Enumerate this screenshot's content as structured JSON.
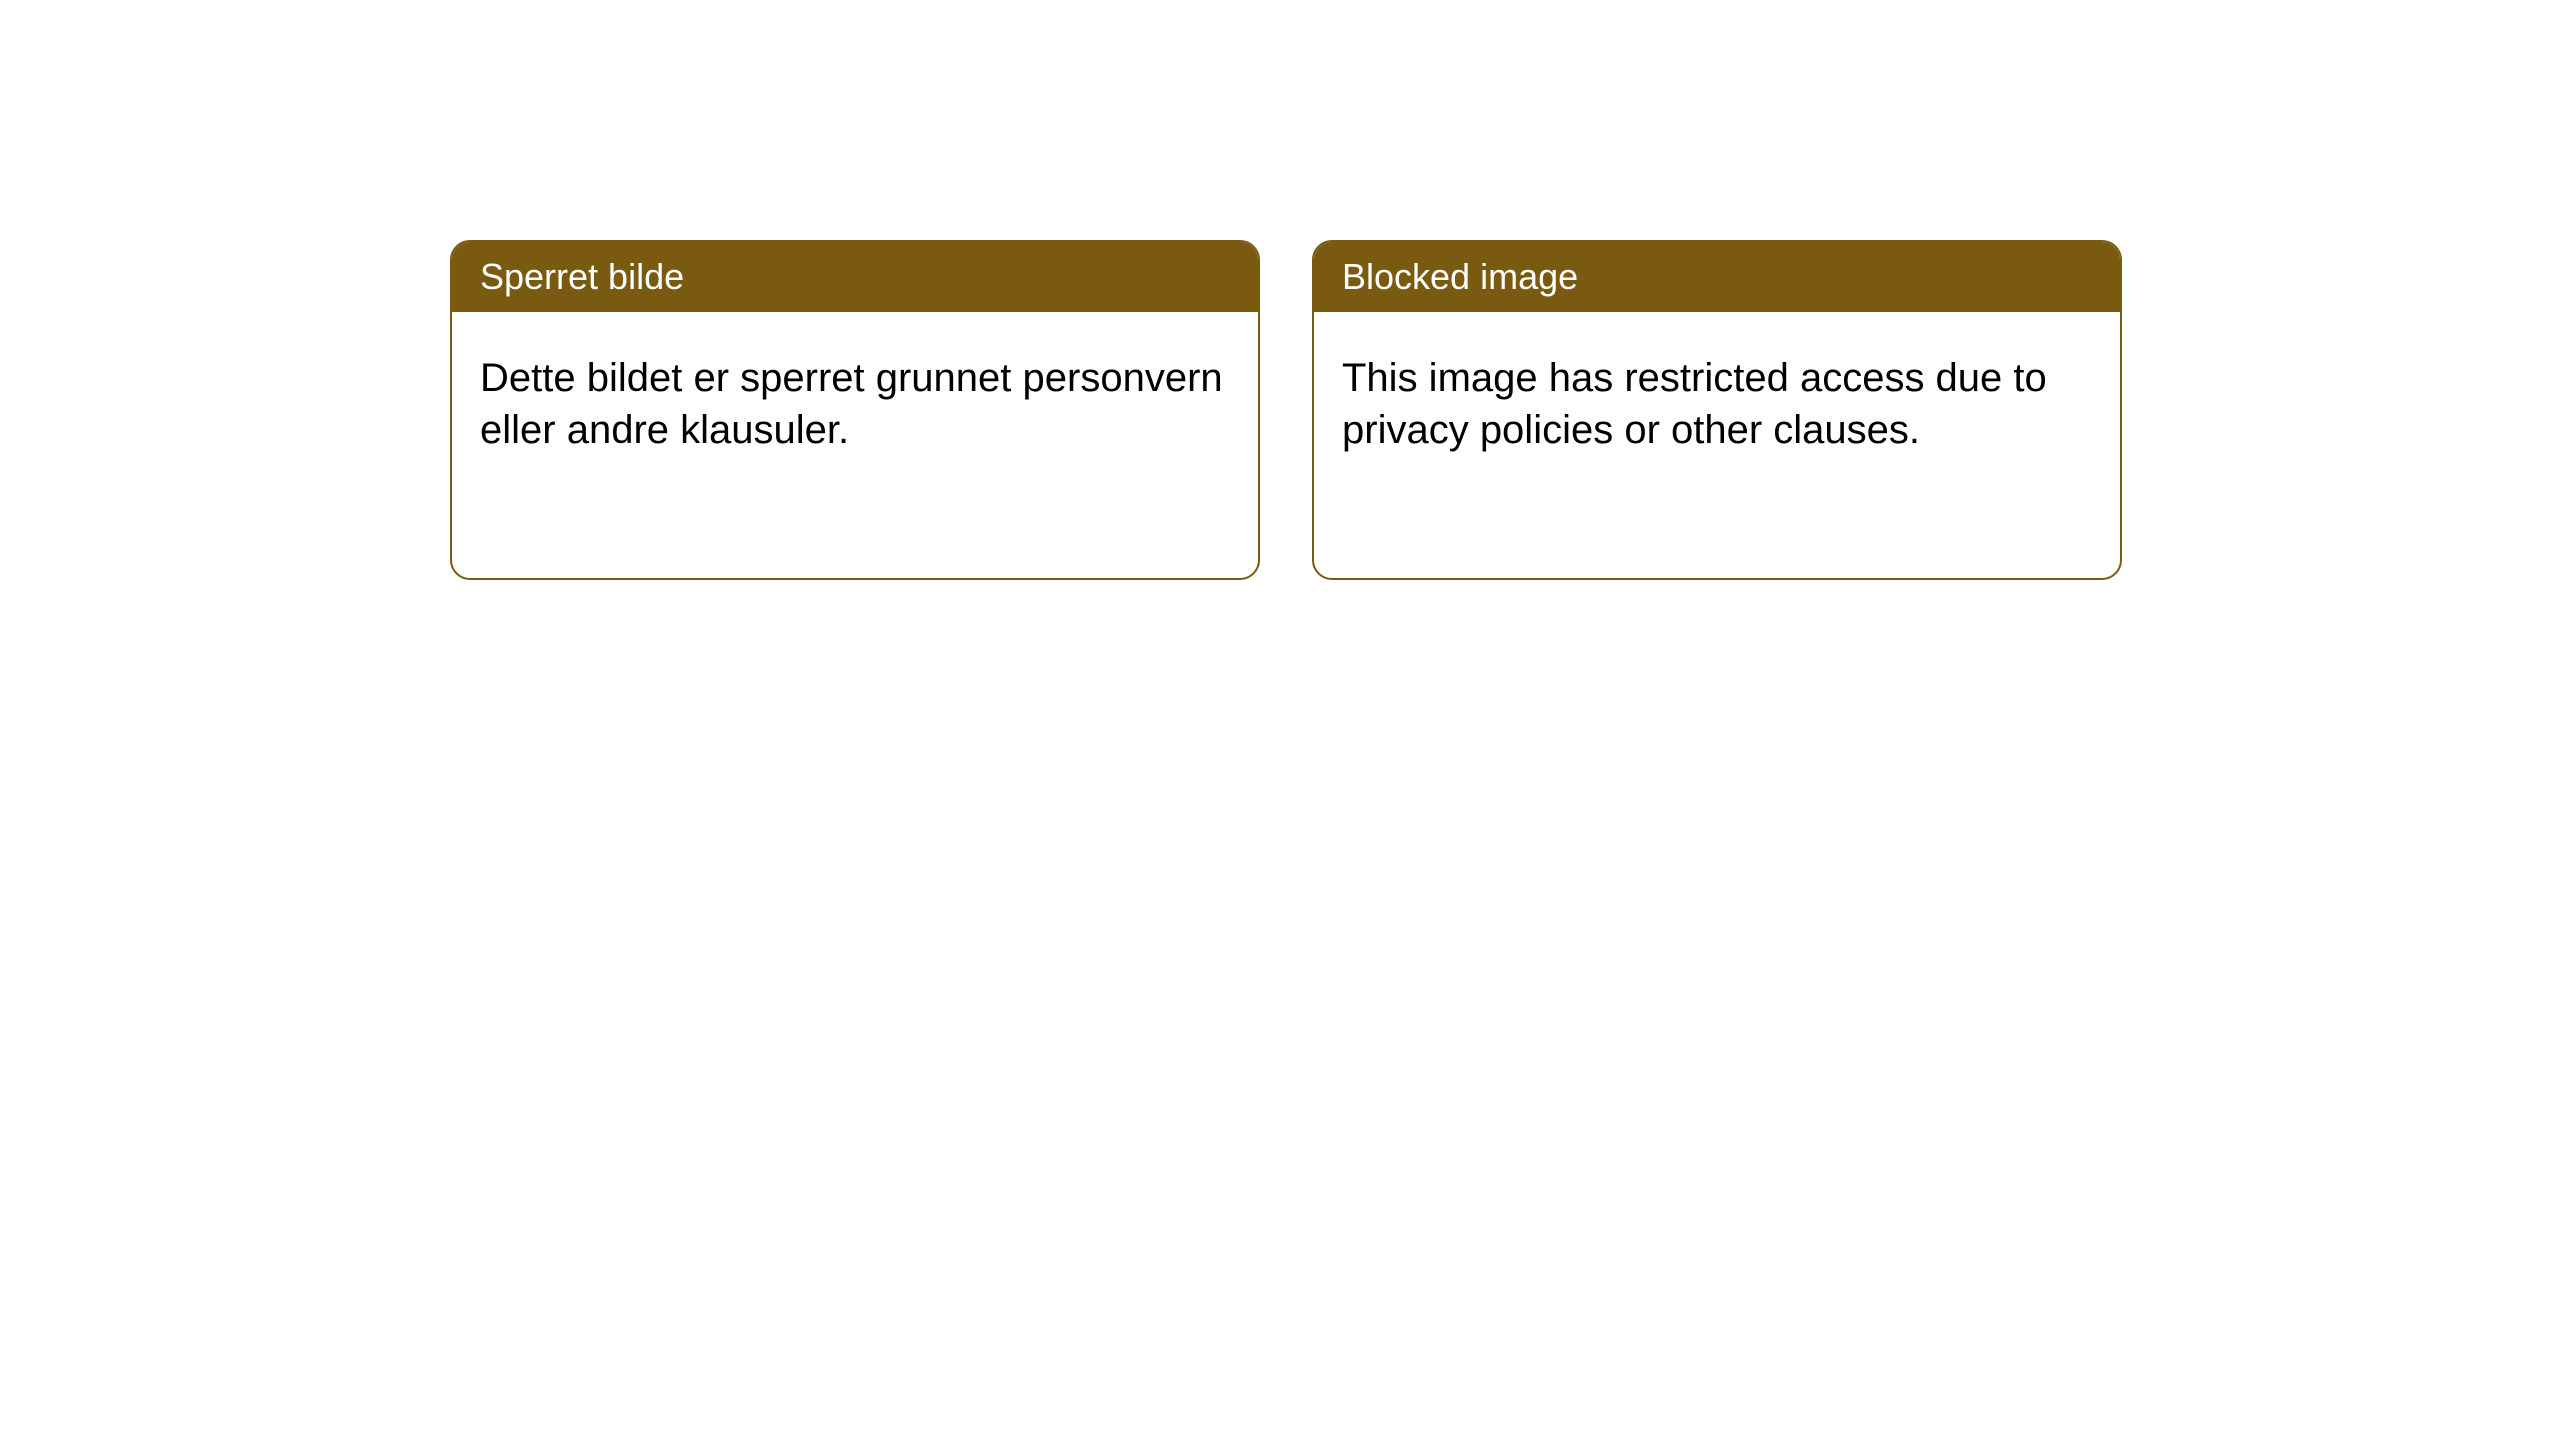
{
  "cards": [
    {
      "title": "Sperret bilde",
      "body": "Dette bildet er sperret grunnet personvern eller andre klausuler."
    },
    {
      "title": "Blocked image",
      "body": "This image has restricted access due to privacy policies or other clauses."
    }
  ],
  "styling": {
    "header_bg_color": "#7a5a10",
    "header_text_color": "#ffffff",
    "card_border_color": "#7a5a10",
    "card_bg_color": "#ffffff",
    "body_text_color": "#000000",
    "page_bg_color": "#ffffff",
    "card_border_radius": 20,
    "header_fontsize": 36,
    "body_fontsize": 40
  }
}
